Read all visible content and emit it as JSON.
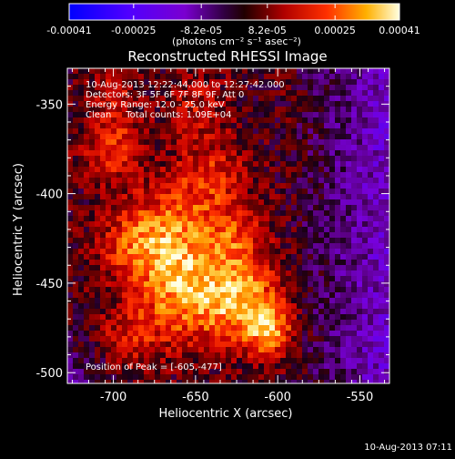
{
  "colorbar": {
    "tick_labels": [
      "-0.00041",
      "-0.00025",
      "-8.2e-05",
      "8.2e-05",
      "0.00025",
      "0.00041"
    ],
    "tick_values": [
      -0.00041,
      -0.00025,
      -8.2e-05,
      8.2e-05,
      0.00025,
      0.00041
    ],
    "range": [
      -0.00041,
      0.00041
    ],
    "units_text": "(photons cm⁻² s⁻¹ asec⁻²)"
  },
  "plot": {
    "title": "Reconstructed RHESSI Image",
    "xlabel": "Heliocentric X (arcsec)",
    "ylabel": "Heliocentric Y (arcsec)",
    "xlim": [
      -728,
      -532
    ],
    "ylim": [
      -506,
      -330
    ],
    "x_tick_labels": [
      "-700",
      "-650",
      "-600",
      "-550"
    ],
    "x_tick_values": [
      -700,
      -650,
      -600,
      -550
    ],
    "y_tick_labels": [
      "-350",
      "-400",
      "-450",
      "-500"
    ],
    "y_tick_values": [
      -350,
      -400,
      -450,
      -500
    ],
    "info_lines": [
      "10-Aug-2013 12:22:44.000 to 12:27:42.000",
      "Detectors: 3F 5F 6F 7F 8F 9F, Att 0",
      "Energy Range: 12.0 - 25.0 keV",
      "Clean     Total counts: 1.09E+04"
    ],
    "peak_text": "Position of Peak = [-605,-477]",
    "peak": [
      -605,
      -477
    ]
  },
  "footer": {
    "timestamp": "10-Aug-2013 07:11"
  },
  "colors": {
    "background": "#000000",
    "foreground": "#ffffff",
    "colormap": [
      "#0000ff",
      "#7a00e0",
      "#3a0050",
      "#000000",
      "#8a0000",
      "#e01500",
      "#ff8000",
      "#ffe080",
      "#ffffff"
    ]
  }
}
